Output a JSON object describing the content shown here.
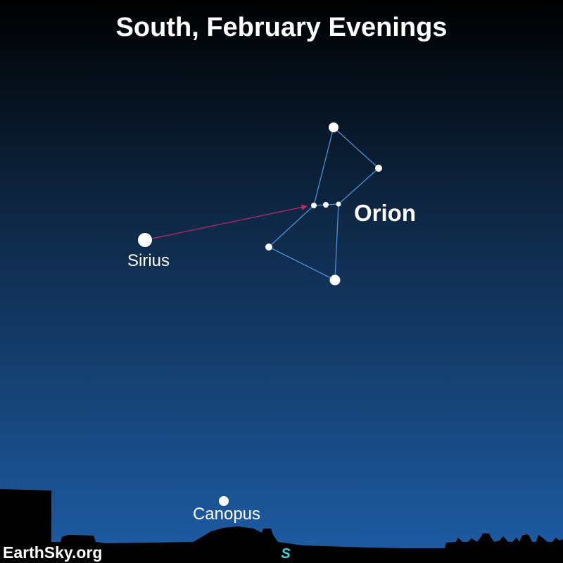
{
  "title": "South, February Evenings",
  "colors": {
    "sky_top": "#000000",
    "sky_mid": "#0e2744",
    "sky_bottom": "#1e5da6",
    "star": "#ffffff",
    "constellation_line": "#4a90d9",
    "pointer_arrow": "#c0286e",
    "direction_marker": "#3fd4e0",
    "horizon": "#000000"
  },
  "stars": {
    "sirius": {
      "label": "Sirius"
    },
    "canopus": {
      "label": "Canopus"
    }
  },
  "constellation": {
    "label": "Orion"
  },
  "pointer": {
    "from": "Sirius",
    "to": "Orion's Belt"
  },
  "horizon": {
    "direction": "S"
  },
  "credit": "EarthSky.org"
}
